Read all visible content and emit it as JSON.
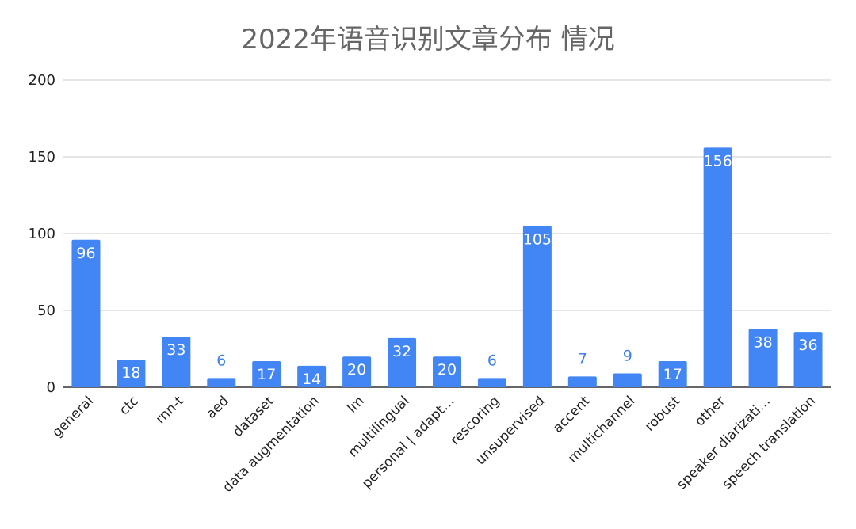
{
  "chart_data": {
    "type": "bar",
    "title": "2022年语音识别文章分布 情况",
    "xlabel": "",
    "ylabel": "",
    "ylim": [
      0,
      200
    ],
    "yticks": [
      0,
      50,
      100,
      150,
      200
    ],
    "grid": true,
    "bar_color": "#4285f4",
    "categories": [
      "general",
      "ctc",
      "rnn-t",
      "aed",
      "dataset",
      "data augmentation",
      "lm",
      "multilingual",
      "personal | adapt…",
      "rescoring",
      "unsupervised",
      "accent",
      "multichannel",
      "robust",
      "other",
      "speaker diarizati…",
      "speech translation"
    ],
    "values": [
      96,
      18,
      33,
      6,
      17,
      14,
      20,
      32,
      20,
      6,
      105,
      7,
      9,
      17,
      156,
      38,
      36
    ]
  }
}
